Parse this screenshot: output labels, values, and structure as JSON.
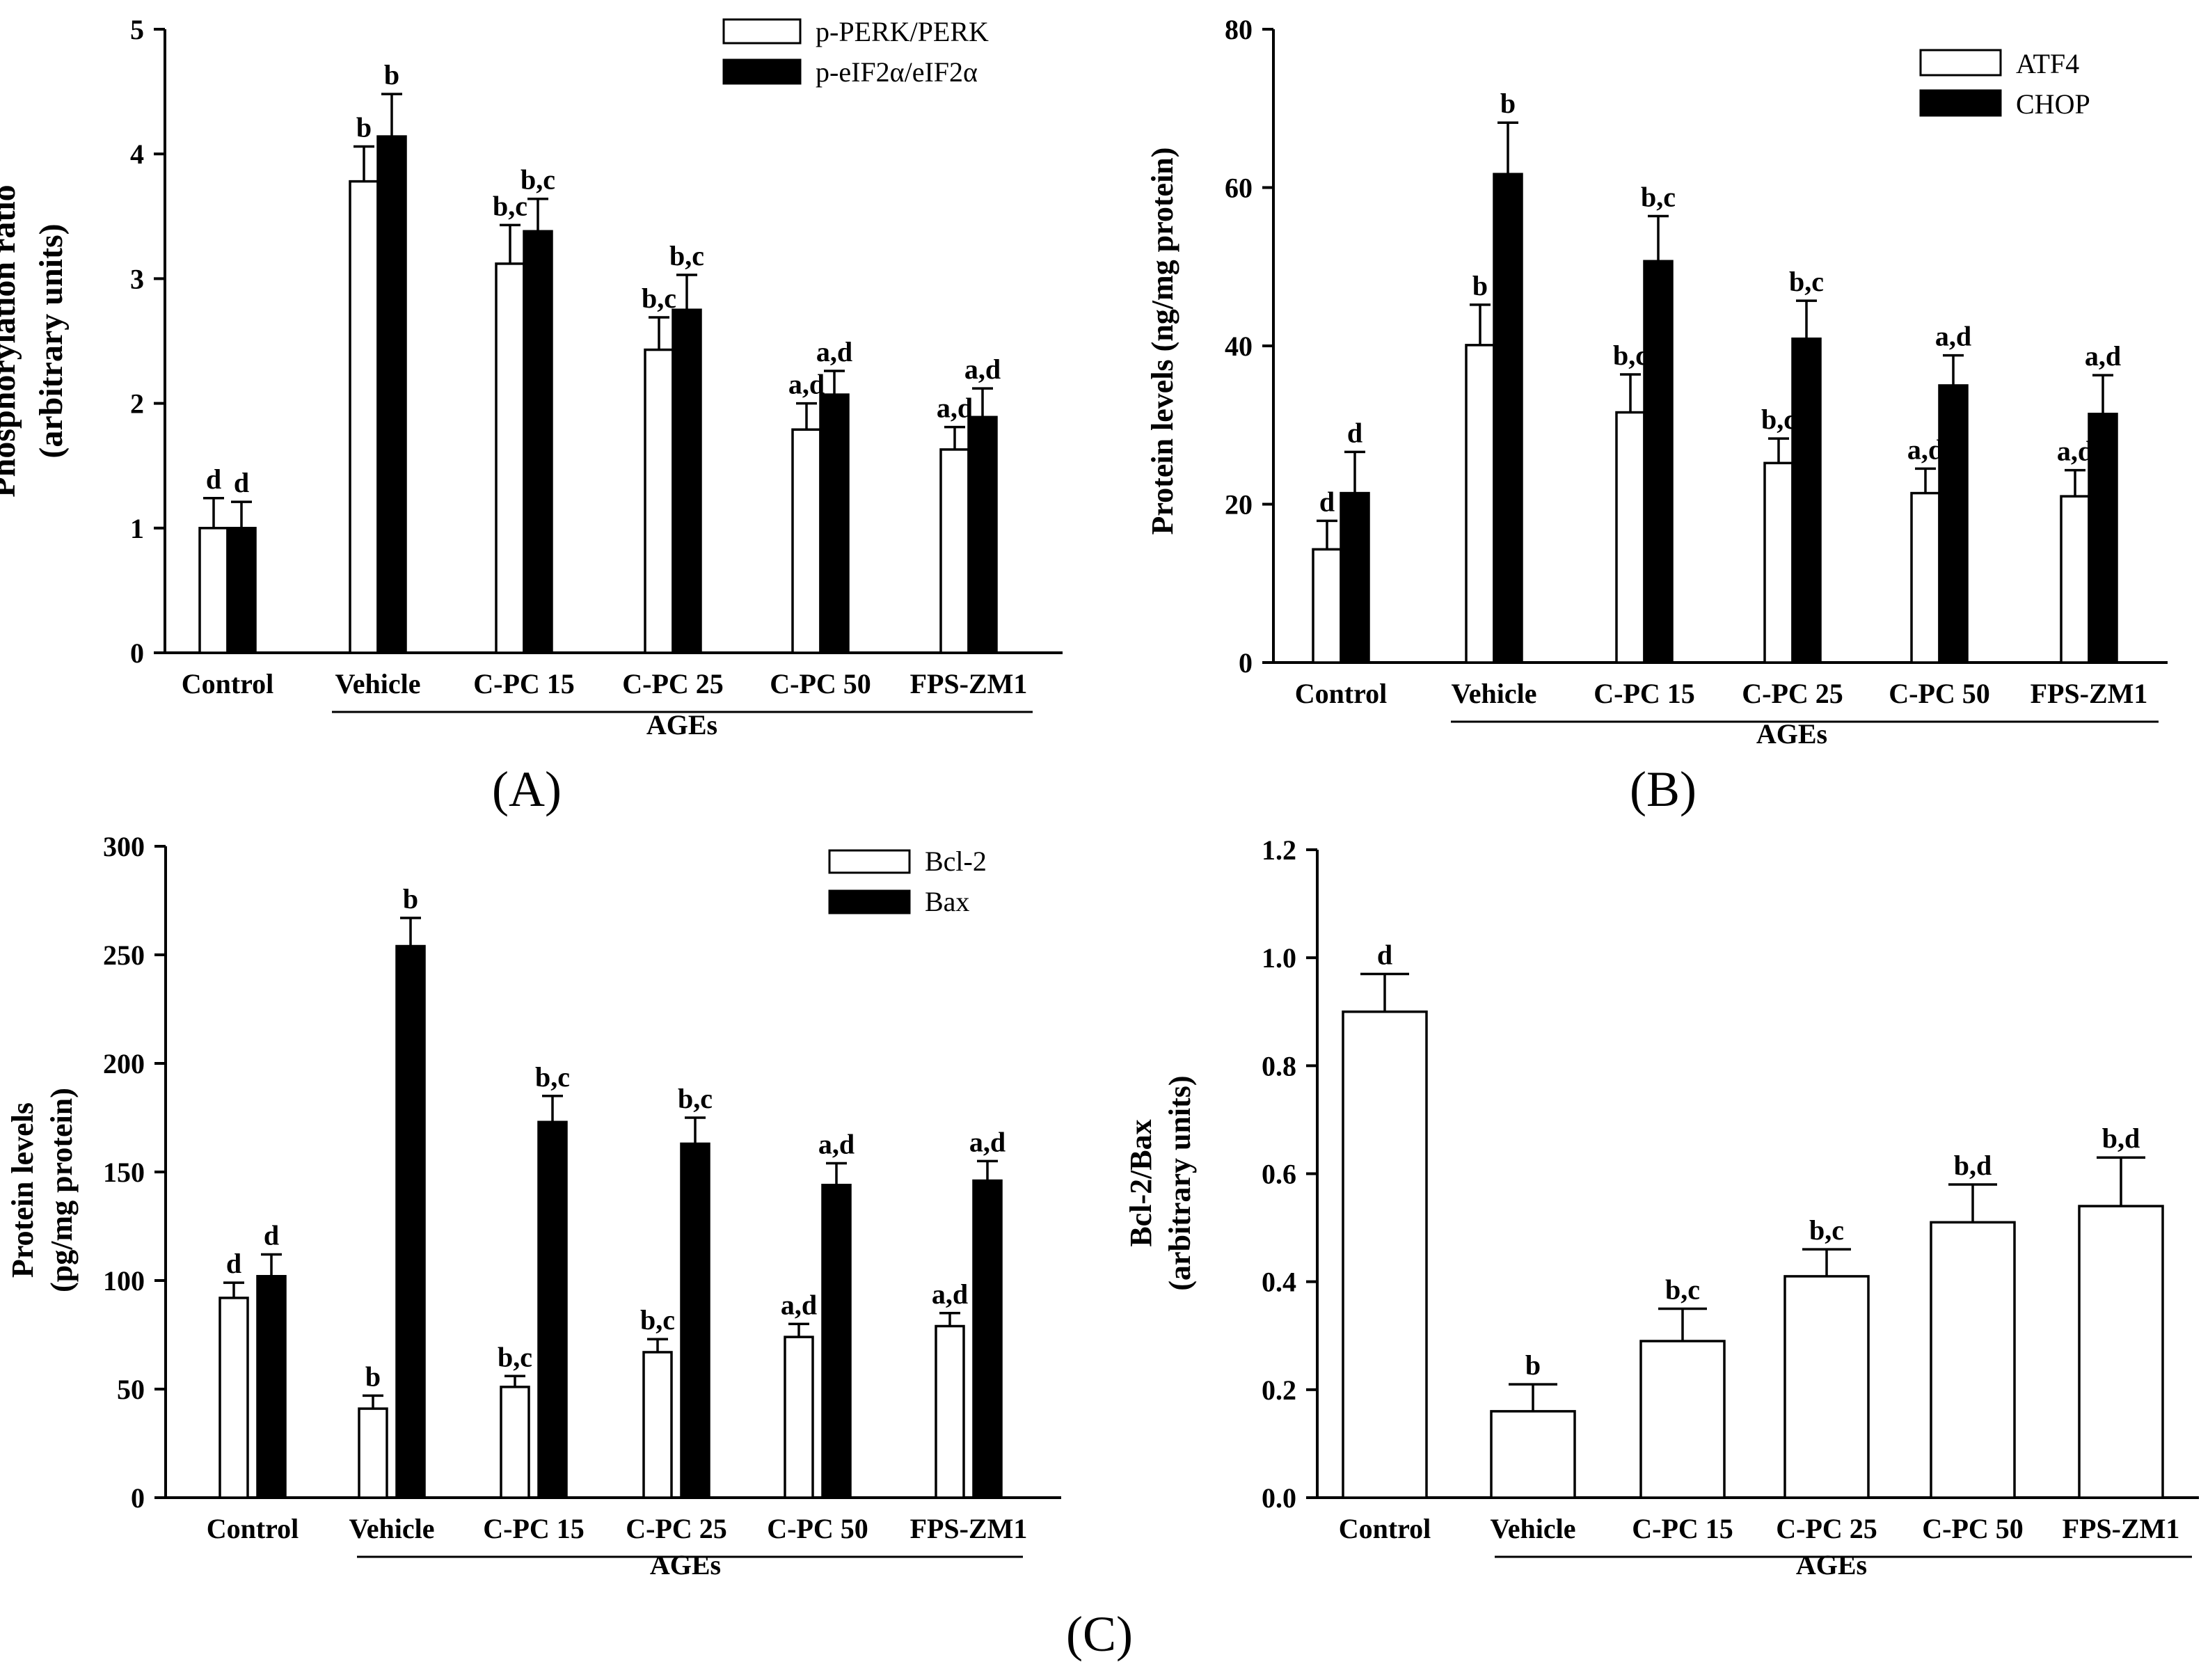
{
  "figure": {
    "panel_labels": [
      "(A)",
      "(B)",
      "(C)"
    ],
    "group_label": "AGEs",
    "panel_label_letters": [
      "A",
      "B",
      "C"
    ]
  },
  "colors": {
    "bar_outline": "#000000",
    "series_open": "#ffffff",
    "series_filled": "#000000"
  },
  "chart_data": [
    {
      "id": "A",
      "type": "bar",
      "title": "",
      "ylabel_lines": [
        "Phosphorylation ratio",
        "(arbitrary units)"
      ],
      "xlabel": "",
      "categories": [
        "Control",
        "Vehicle",
        "C-PC 15",
        "C-PC 25",
        "C-PC 50",
        "FPS-ZM1"
      ],
      "ylim": [
        0,
        5
      ],
      "yticks": [
        "0",
        "1",
        "2",
        "3",
        "4",
        "5"
      ],
      "legend_position": "top-right",
      "group_label": "AGEs",
      "series": [
        {
          "name": "p-PERK/PERK",
          "fill": "open",
          "values": [
            1.0,
            3.78,
            3.12,
            2.43,
            1.79,
            1.63
          ],
          "errors": [
            0.24,
            0.28,
            0.31,
            0.26,
            0.21,
            0.18
          ],
          "annotations": [
            "d",
            "b",
            "b,c",
            "b,c",
            "a,d",
            "a,d"
          ]
        },
        {
          "name": "p-eIF2α/eIF2α",
          "fill": "filled",
          "values": [
            1.0,
            4.14,
            3.38,
            2.75,
            2.07,
            1.89
          ],
          "errors": [
            0.21,
            0.34,
            0.26,
            0.28,
            0.19,
            0.23
          ],
          "annotations": [
            "d",
            "b",
            "b,c",
            "b,c",
            "a,d",
            "a,d"
          ]
        }
      ]
    },
    {
      "id": "B",
      "type": "bar",
      "title": "",
      "ylabel_lines": [
        "Protein levels (ng/mg protein)"
      ],
      "xlabel": "",
      "categories": [
        "Control",
        "Vehicle",
        "C-PC 15",
        "C-PC 25",
        "C-PC 50",
        "FPS-ZM1"
      ],
      "ylim": [
        0,
        80
      ],
      "yticks": [
        "0",
        "20",
        "40",
        "60",
        "80"
      ],
      "legend_position": "top-right",
      "group_label": "AGEs",
      "series": [
        {
          "name": "ATF4",
          "fill": "open",
          "values": [
            14.3,
            40.1,
            31.6,
            25.2,
            21.4,
            21.0
          ],
          "errors": [
            3.6,
            5.1,
            4.8,
            3.1,
            3.1,
            3.3
          ],
          "annotations": [
            "d",
            "b",
            "b,c",
            "b,c",
            "a,d",
            "a,d"
          ]
        },
        {
          "name": "CHOP",
          "fill": "filled",
          "values": [
            21.4,
            61.7,
            50.7,
            40.9,
            35.0,
            31.4
          ],
          "errors": [
            5.2,
            6.5,
            5.7,
            4.8,
            3.8,
            4.9
          ],
          "annotations": [
            "d",
            "b",
            "b,c",
            "b,c",
            "a,d",
            "a,d"
          ]
        }
      ]
    },
    {
      "id": "C1",
      "type": "bar",
      "title": "",
      "ylabel_lines": [
        "Protein levels",
        "(pg/mg protein)"
      ],
      "xlabel": "",
      "categories": [
        "Control",
        "Vehicle",
        "C-PC 15",
        "C-PC 25",
        "C-PC 50",
        "FPS-ZM1"
      ],
      "ylim": [
        0,
        300
      ],
      "yticks": [
        "0",
        "50",
        "100",
        "150",
        "200",
        "250",
        "300"
      ],
      "legend_position": "top-right",
      "group_label": "AGEs",
      "series": [
        {
          "name": "Bcl-2",
          "fill": "open",
          "values": [
            92,
            41,
            51,
            67,
            74,
            79
          ],
          "errors": [
            7,
            6,
            5,
            6,
            6,
            6
          ],
          "annotations": [
            "d",
            "b",
            "b,c",
            "b,c",
            "a,d",
            "a,d"
          ]
        },
        {
          "name": "Bax",
          "fill": "filled",
          "values": [
            102,
            254,
            173,
            163,
            144,
            146
          ],
          "errors": [
            10,
            13,
            12,
            12,
            10,
            9
          ],
          "annotations": [
            "d",
            "b",
            "b,c",
            "b,c",
            "a,d",
            "a,d"
          ]
        }
      ]
    },
    {
      "id": "C2",
      "type": "bar",
      "title": "",
      "ylabel_lines": [
        "Bcl-2/Bax",
        "(arbitrary units)"
      ],
      "xlabel": "",
      "categories": [
        "Control",
        "Vehicle",
        "C-PC 15",
        "C-PC 25",
        "C-PC 50",
        "FPS-ZM1"
      ],
      "ylim": [
        0,
        1.2
      ],
      "yticks": [
        "0.0",
        "0.2",
        "0.4",
        "0.6",
        "0.8",
        "1.0",
        "1.2"
      ],
      "legend_position": "none",
      "group_label": "AGEs",
      "series": [
        {
          "name": "Bcl-2/Bax",
          "fill": "open",
          "values": [
            0.9,
            0.16,
            0.29,
            0.41,
            0.51,
            0.54
          ],
          "errors": [
            0.07,
            0.05,
            0.06,
            0.05,
            0.07,
            0.09
          ],
          "annotations": [
            "d",
            "b",
            "b,c",
            "b,c",
            "b,d",
            "b,d"
          ]
        }
      ]
    }
  ]
}
